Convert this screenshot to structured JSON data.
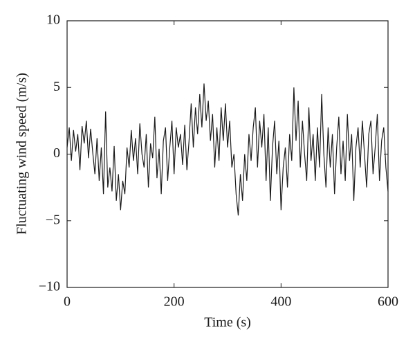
{
  "chart_data": {
    "type": "line",
    "x_label": "Time (s)",
    "y_label": "Fluctuating wind speed (m/s)",
    "x": [
      0,
      4,
      8,
      12,
      16,
      20,
      24,
      28,
      32,
      36,
      40,
      44,
      48,
      52,
      56,
      60,
      64,
      68,
      72,
      76,
      80,
      84,
      88,
      92,
      96,
      100,
      104,
      108,
      112,
      116,
      120,
      124,
      128,
      132,
      136,
      140,
      144,
      148,
      152,
      156,
      160,
      164,
      168,
      172,
      176,
      180,
      184,
      188,
      192,
      196,
      200,
      204,
      208,
      212,
      216,
      220,
      224,
      228,
      232,
      236,
      240,
      244,
      248,
      252,
      256,
      260,
      264,
      268,
      272,
      276,
      280,
      284,
      288,
      292,
      296,
      300,
      304,
      308,
      312,
      316,
      320,
      324,
      328,
      332,
      336,
      340,
      344,
      348,
      352,
      356,
      360,
      364,
      368,
      372,
      376,
      380,
      384,
      388,
      392,
      396,
      400,
      404,
      408,
      412,
      416,
      420,
      424,
      428,
      432,
      436,
      440,
      444,
      448,
      452,
      456,
      460,
      464,
      468,
      472,
      476,
      480,
      484,
      488,
      492,
      496,
      500,
      504,
      508,
      512,
      516,
      520,
      524,
      528,
      532,
      536,
      540,
      544,
      548,
      552,
      556,
      560,
      564,
      568,
      572,
      576,
      580,
      584,
      588,
      592,
      596,
      600
    ],
    "series": [
      {
        "color": "#1a1a1a",
        "values": [
          0.5,
          2.0,
          -0.5,
          1.8,
          0.2,
          1.5,
          -1.2,
          2.1,
          0.8,
          2.5,
          -0.3,
          1.9,
          0.1,
          -1.5,
          1.2,
          -2.0,
          0.5,
          -3.0,
          3.2,
          -2.5,
          -1.0,
          -2.8,
          0.6,
          -3.5,
          -1.5,
          -4.2,
          -2.0,
          -3.0,
          0.5,
          -1.0,
          1.8,
          -0.5,
          1.2,
          -1.5,
          2.3,
          0.0,
          -1.0,
          1.5,
          -2.5,
          0.8,
          -0.3,
          2.8,
          -1.8,
          0.4,
          -3.0,
          1.0,
          2.0,
          -2.0,
          0.5,
          2.5,
          -1.5,
          2.0,
          0.5,
          1.5,
          -0.8,
          2.2,
          -1.2,
          1.0,
          3.8,
          0.5,
          3.5,
          1.5,
          4.5,
          2.0,
          5.3,
          2.5,
          4.0,
          1.0,
          3.0,
          -1.0,
          2.0,
          -0.5,
          3.5,
          1.0,
          3.8,
          0.5,
          2.5,
          -1.0,
          0.0,
          -3.0,
          -4.6,
          -1.5,
          -3.5,
          0.0,
          -2.0,
          1.5,
          -0.5,
          2.0,
          3.5,
          -1.0,
          2.5,
          0.5,
          3.0,
          -2.0,
          2.0,
          -3.5,
          0.5,
          2.5,
          -1.5,
          1.0,
          -4.2,
          -1.0,
          0.5,
          -2.5,
          1.5,
          -0.5,
          5.0,
          1.0,
          4.0,
          -1.0,
          2.5,
          0.0,
          -2.0,
          3.5,
          -0.5,
          1.5,
          -2.0,
          2.0,
          -1.0,
          4.5,
          0.0,
          -2.5,
          2.0,
          -1.0,
          1.5,
          -3.0,
          0.5,
          2.8,
          -1.5,
          1.0,
          -2.0,
          3.0,
          -0.5,
          1.5,
          -3.5,
          0.5,
          2.0,
          -1.0,
          2.5,
          0.0,
          -2.5,
          1.5,
          2.5,
          -1.5,
          0.5,
          3.0,
          -2.0,
          1.0,
          2.0,
          -1.0,
          -2.8
        ]
      }
    ],
    "xlim": [
      0,
      600
    ],
    "ylim": [
      -10,
      10
    ],
    "xticks": [
      0,
      200,
      400,
      600
    ],
    "yticks": [
      {
        "value": -10,
        "label": "−10"
      },
      {
        "value": -5,
        "label": "−5"
      },
      0,
      5,
      10
    ]
  }
}
